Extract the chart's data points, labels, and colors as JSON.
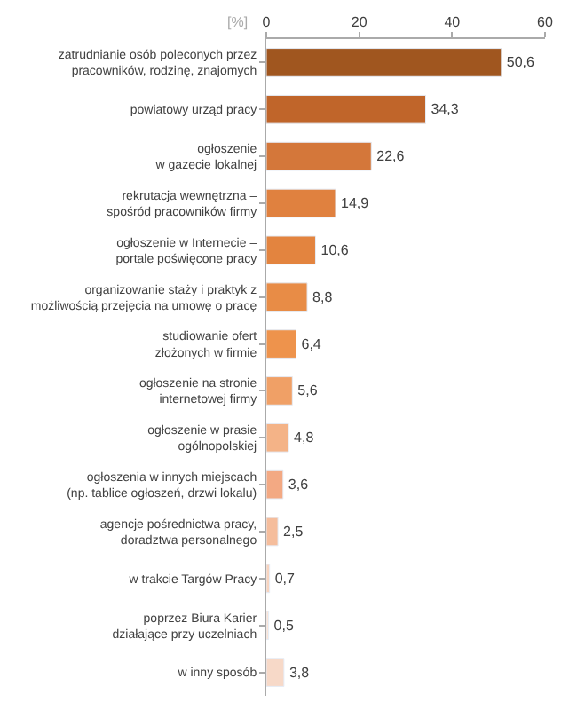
{
  "chart_data": {
    "type": "bar",
    "orientation": "horizontal",
    "xlabel": "[%]",
    "categories": [
      "zatrudnianie osób poleconych przez\npracowników, rodzinę, znajomych",
      "powiatowy urząd pracy",
      "ogłoszenie\nw gazecie lokalnej",
      "rekrutacja wewnętrzna –\nspośród pracowników firmy",
      "ogłoszenie w Internecie –\nportale poświęcone pracy",
      "organizowanie staży i praktyk z\nmożliwością przejęcia na umowę o pracę",
      "studiowanie ofert\nzłożonych w firmie",
      "ogłoszenie na stronie\ninternetowej firmy",
      "ogłoszenie w prasie\nogólnopolskiej",
      "ogłoszenia w innych miejscach\n(np. tablice ogłoszeń, drzwi lokalu)",
      "agencje pośrednictwa pracy,\ndoradztwa personalnego",
      "w trakcie Targów Pracy",
      "poprzez Biura Karier\ndziałające przy uczelniach",
      "w inny sposób"
    ],
    "values": [
      50.6,
      34.3,
      22.6,
      14.9,
      10.6,
      8.8,
      6.4,
      5.6,
      4.8,
      3.6,
      2.5,
      0.7,
      0.5,
      3.8
    ],
    "value_labels": [
      "50,6",
      "34,3",
      "22,6",
      "14,9",
      "10,6",
      "8,8",
      "6,4",
      "5,6",
      "4,8",
      "3,6",
      "2,5",
      "0,7",
      "0,5",
      "3,8"
    ],
    "colors": [
      "#a0561f",
      "#c0652a",
      "#d4773a",
      "#e0813f",
      "#e3843f",
      "#e88c46",
      "#ee934c",
      "#f0a066",
      "#f4b387",
      "#f3a983",
      "#f5bd9c",
      "#f8d4bf",
      "#fae5d8",
      "#f7d9c8"
    ],
    "xlim": [
      0,
      60
    ],
    "xticks": [
      0,
      20,
      40,
      60
    ]
  }
}
